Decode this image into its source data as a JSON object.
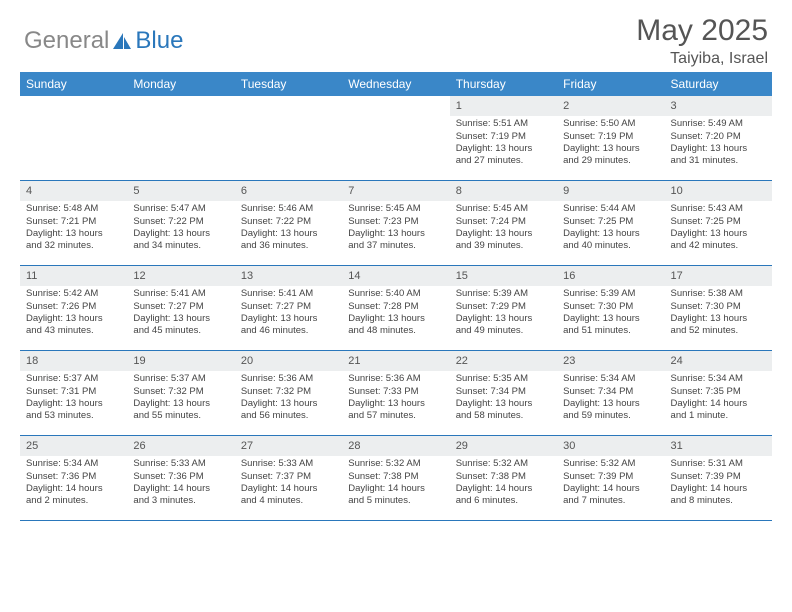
{
  "logo": {
    "part1": "General",
    "part2": "Blue"
  },
  "title": "May 2025",
  "location": "Taiyiba, Israel",
  "colors": {
    "header_bg": "#3a87c8",
    "week_border": "#2a77bb",
    "daynum_bg": "#eceeef",
    "text": "#444444",
    "logo_accent": "#2a77bb"
  },
  "typography": {
    "title_fontsize": 30,
    "location_fontsize": 16,
    "dayhead_fontsize": 12,
    "cell_fontsize": 9.5
  },
  "day_headers": [
    "Sunday",
    "Monday",
    "Tuesday",
    "Wednesday",
    "Thursday",
    "Friday",
    "Saturday"
  ],
  "weeks": [
    [
      null,
      null,
      null,
      null,
      {
        "n": "1",
        "sr": "Sunrise: 5:51 AM",
        "ss": "Sunset: 7:19 PM",
        "d1": "Daylight: 13 hours",
        "d2": "and 27 minutes."
      },
      {
        "n": "2",
        "sr": "Sunrise: 5:50 AM",
        "ss": "Sunset: 7:19 PM",
        "d1": "Daylight: 13 hours",
        "d2": "and 29 minutes."
      },
      {
        "n": "3",
        "sr": "Sunrise: 5:49 AM",
        "ss": "Sunset: 7:20 PM",
        "d1": "Daylight: 13 hours",
        "d2": "and 31 minutes."
      }
    ],
    [
      {
        "n": "4",
        "sr": "Sunrise: 5:48 AM",
        "ss": "Sunset: 7:21 PM",
        "d1": "Daylight: 13 hours",
        "d2": "and 32 minutes."
      },
      {
        "n": "5",
        "sr": "Sunrise: 5:47 AM",
        "ss": "Sunset: 7:22 PM",
        "d1": "Daylight: 13 hours",
        "d2": "and 34 minutes."
      },
      {
        "n": "6",
        "sr": "Sunrise: 5:46 AM",
        "ss": "Sunset: 7:22 PM",
        "d1": "Daylight: 13 hours",
        "d2": "and 36 minutes."
      },
      {
        "n": "7",
        "sr": "Sunrise: 5:45 AM",
        "ss": "Sunset: 7:23 PM",
        "d1": "Daylight: 13 hours",
        "d2": "and 37 minutes."
      },
      {
        "n": "8",
        "sr": "Sunrise: 5:45 AM",
        "ss": "Sunset: 7:24 PM",
        "d1": "Daylight: 13 hours",
        "d2": "and 39 minutes."
      },
      {
        "n": "9",
        "sr": "Sunrise: 5:44 AM",
        "ss": "Sunset: 7:25 PM",
        "d1": "Daylight: 13 hours",
        "d2": "and 40 minutes."
      },
      {
        "n": "10",
        "sr": "Sunrise: 5:43 AM",
        "ss": "Sunset: 7:25 PM",
        "d1": "Daylight: 13 hours",
        "d2": "and 42 minutes."
      }
    ],
    [
      {
        "n": "11",
        "sr": "Sunrise: 5:42 AM",
        "ss": "Sunset: 7:26 PM",
        "d1": "Daylight: 13 hours",
        "d2": "and 43 minutes."
      },
      {
        "n": "12",
        "sr": "Sunrise: 5:41 AM",
        "ss": "Sunset: 7:27 PM",
        "d1": "Daylight: 13 hours",
        "d2": "and 45 minutes."
      },
      {
        "n": "13",
        "sr": "Sunrise: 5:41 AM",
        "ss": "Sunset: 7:27 PM",
        "d1": "Daylight: 13 hours",
        "d2": "and 46 minutes."
      },
      {
        "n": "14",
        "sr": "Sunrise: 5:40 AM",
        "ss": "Sunset: 7:28 PM",
        "d1": "Daylight: 13 hours",
        "d2": "and 48 minutes."
      },
      {
        "n": "15",
        "sr": "Sunrise: 5:39 AM",
        "ss": "Sunset: 7:29 PM",
        "d1": "Daylight: 13 hours",
        "d2": "and 49 minutes."
      },
      {
        "n": "16",
        "sr": "Sunrise: 5:39 AM",
        "ss": "Sunset: 7:30 PM",
        "d1": "Daylight: 13 hours",
        "d2": "and 51 minutes."
      },
      {
        "n": "17",
        "sr": "Sunrise: 5:38 AM",
        "ss": "Sunset: 7:30 PM",
        "d1": "Daylight: 13 hours",
        "d2": "and 52 minutes."
      }
    ],
    [
      {
        "n": "18",
        "sr": "Sunrise: 5:37 AM",
        "ss": "Sunset: 7:31 PM",
        "d1": "Daylight: 13 hours",
        "d2": "and 53 minutes."
      },
      {
        "n": "19",
        "sr": "Sunrise: 5:37 AM",
        "ss": "Sunset: 7:32 PM",
        "d1": "Daylight: 13 hours",
        "d2": "and 55 minutes."
      },
      {
        "n": "20",
        "sr": "Sunrise: 5:36 AM",
        "ss": "Sunset: 7:32 PM",
        "d1": "Daylight: 13 hours",
        "d2": "and 56 minutes."
      },
      {
        "n": "21",
        "sr": "Sunrise: 5:36 AM",
        "ss": "Sunset: 7:33 PM",
        "d1": "Daylight: 13 hours",
        "d2": "and 57 minutes."
      },
      {
        "n": "22",
        "sr": "Sunrise: 5:35 AM",
        "ss": "Sunset: 7:34 PM",
        "d1": "Daylight: 13 hours",
        "d2": "and 58 minutes."
      },
      {
        "n": "23",
        "sr": "Sunrise: 5:34 AM",
        "ss": "Sunset: 7:34 PM",
        "d1": "Daylight: 13 hours",
        "d2": "and 59 minutes."
      },
      {
        "n": "24",
        "sr": "Sunrise: 5:34 AM",
        "ss": "Sunset: 7:35 PM",
        "d1": "Daylight: 14 hours",
        "d2": "and 1 minute."
      }
    ],
    [
      {
        "n": "25",
        "sr": "Sunrise: 5:34 AM",
        "ss": "Sunset: 7:36 PM",
        "d1": "Daylight: 14 hours",
        "d2": "and 2 minutes."
      },
      {
        "n": "26",
        "sr": "Sunrise: 5:33 AM",
        "ss": "Sunset: 7:36 PM",
        "d1": "Daylight: 14 hours",
        "d2": "and 3 minutes."
      },
      {
        "n": "27",
        "sr": "Sunrise: 5:33 AM",
        "ss": "Sunset: 7:37 PM",
        "d1": "Daylight: 14 hours",
        "d2": "and 4 minutes."
      },
      {
        "n": "28",
        "sr": "Sunrise: 5:32 AM",
        "ss": "Sunset: 7:38 PM",
        "d1": "Daylight: 14 hours",
        "d2": "and 5 minutes."
      },
      {
        "n": "29",
        "sr": "Sunrise: 5:32 AM",
        "ss": "Sunset: 7:38 PM",
        "d1": "Daylight: 14 hours",
        "d2": "and 6 minutes."
      },
      {
        "n": "30",
        "sr": "Sunrise: 5:32 AM",
        "ss": "Sunset: 7:39 PM",
        "d1": "Daylight: 14 hours",
        "d2": "and 7 minutes."
      },
      {
        "n": "31",
        "sr": "Sunrise: 5:31 AM",
        "ss": "Sunset: 7:39 PM",
        "d1": "Daylight: 14 hours",
        "d2": "and 8 minutes."
      }
    ]
  ]
}
